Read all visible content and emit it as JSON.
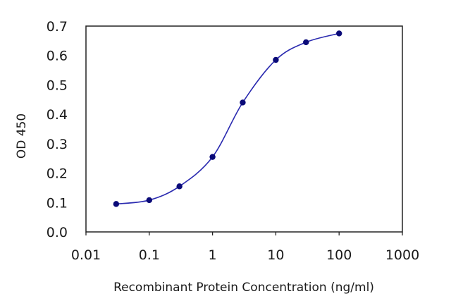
{
  "chart_data": {
    "type": "line",
    "title": "",
    "xlabel": "Recombinant Protein Concentration (ng/ml)",
    "ylabel": "OD 450",
    "x_scale": "log",
    "xlim": [
      0.01,
      1000
    ],
    "ylim": [
      0.0,
      0.7
    ],
    "x_ticks": [
      "0.01",
      "0.1",
      "1",
      "10",
      "100",
      "1000"
    ],
    "y_ticks": [
      "0.0",
      "0.1",
      "0.2",
      "0.3",
      "0.4",
      "0.5",
      "0.6",
      "0.7"
    ],
    "grid": "horizontal",
    "legend": "none",
    "series": [
      {
        "x": [
          0.03,
          0.1,
          0.3,
          1.0,
          3.0,
          10.0,
          30.0,
          100.0
        ],
        "y": [
          0.095,
          0.108,
          0.155,
          0.255,
          0.44,
          0.585,
          0.645,
          0.675
        ],
        "color": "#2b2bb0",
        "marker_color": "#0a0a78",
        "curve": "smooth"
      }
    ],
    "colors": {
      "plot_background": "#ffffff",
      "plot_border": "#222222",
      "gridline": "#222222",
      "line": "#2b2bb0",
      "marker": "#0a0a78"
    }
  }
}
